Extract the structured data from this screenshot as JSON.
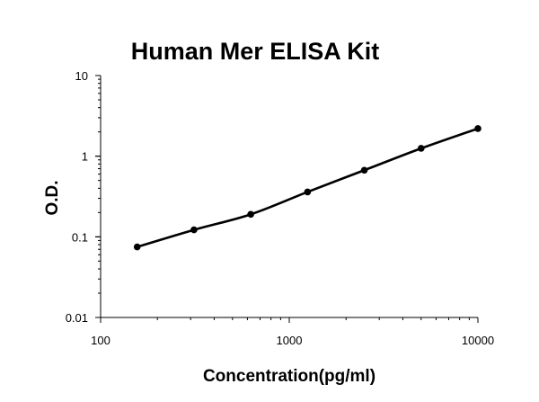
{
  "chart_data": {
    "type": "scatter",
    "title": "Human Mer ELISA Kit",
    "xlabel": "Concentration(pg/ml)",
    "ylabel": "O.D.",
    "x_scale": "log",
    "y_scale": "log",
    "xlim": [
      100,
      10000
    ],
    "ylim": [
      0.01,
      10
    ],
    "x_ticks": [
      {
        "value": 100,
        "label": "100"
      },
      {
        "value": 1000,
        "label": "1000"
      },
      {
        "value": 10000,
        "label": "10000"
      }
    ],
    "y_ticks": [
      {
        "value": 0.01,
        "label": "0.01"
      },
      {
        "value": 0.1,
        "label": "0.1"
      },
      {
        "value": 1,
        "label": "1"
      },
      {
        "value": 10,
        "label": "10"
      }
    ],
    "grid": false,
    "legend": "none",
    "line_color": "#000000",
    "series": [
      {
        "x": [
          156.25,
          312.5,
          625,
          1250,
          2500,
          5000,
          10000
        ],
        "y": [
          0.075,
          0.122,
          0.19,
          0.36,
          0.67,
          1.25,
          2.2
        ]
      }
    ]
  }
}
